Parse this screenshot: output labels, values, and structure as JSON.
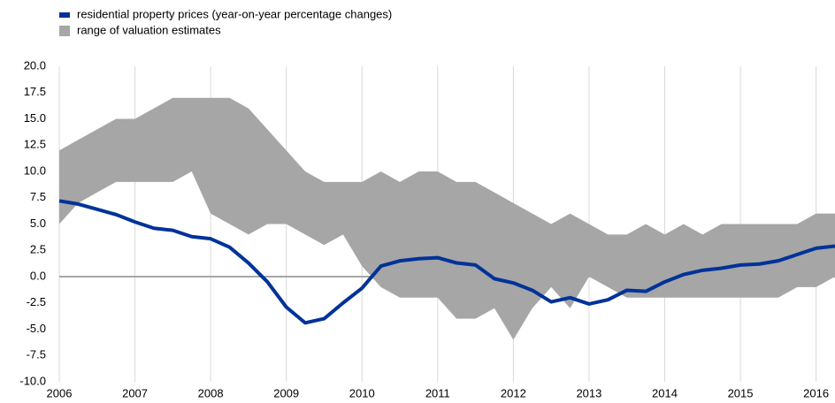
{
  "chart_data": {
    "type": "line",
    "x": [
      2006,
      2006.25,
      2006.5,
      2006.75,
      2007,
      2007.25,
      2007.5,
      2007.75,
      2008,
      2008.25,
      2008.5,
      2008.75,
      2009,
      2009.25,
      2009.5,
      2009.75,
      2010,
      2010.25,
      2010.5,
      2010.75,
      2011,
      2011.25,
      2011.5,
      2011.75,
      2012,
      2012.25,
      2012.5,
      2012.75,
      2013,
      2013.25,
      2013.5,
      2013.75,
      2014,
      2014.25,
      2014.5,
      2014.75,
      2015,
      2015.25,
      2015.5,
      2015.75,
      2016,
      2016.25
    ],
    "series": [
      {
        "name": "residential property prices (year-on-year percentage changes)",
        "color": "#003299",
        "values": [
          7.2,
          6.9,
          6.4,
          5.9,
          5.2,
          4.6,
          4.4,
          3.8,
          3.6,
          2.8,
          1.3,
          -0.5,
          -2.9,
          -4.4,
          -4.0,
          -2.5,
          -1.1,
          1.0,
          1.5,
          1.7,
          1.8,
          1.3,
          1.1,
          -0.2,
          -0.6,
          -1.3,
          -2.4,
          -2.0,
          -2.6,
          -2.2,
          -1.3,
          -1.4,
          -0.5,
          0.2,
          0.6,
          0.8,
          1.1,
          1.2,
          1.5,
          2.1,
          2.7,
          2.9
        ]
      },
      {
        "name": "range of valuation estimates",
        "color": "#a6a6a6",
        "upper": [
          12,
          13,
          14,
          15,
          15,
          16,
          17,
          17,
          17,
          17,
          16,
          14,
          12,
          10,
          9,
          9,
          9,
          10,
          9,
          10,
          10,
          9,
          9,
          8,
          7,
          6,
          5,
          6,
          5,
          4,
          4,
          5,
          4,
          5,
          4,
          5,
          5,
          5,
          5,
          5,
          6,
          6
        ],
        "lower": [
          5,
          7,
          8,
          9,
          9,
          9,
          9,
          10,
          6,
          5,
          4,
          5,
          5,
          4,
          3,
          4,
          1,
          -1,
          -2,
          -2,
          -2,
          -4,
          -4,
          -3,
          -6,
          -3,
          -1,
          -3,
          0,
          -1,
          -2,
          -2,
          -2,
          -2,
          -2,
          -2,
          -2,
          -2,
          -2,
          -1,
          -1,
          0
        ]
      }
    ],
    "xlim": [
      2006,
      2016.25
    ],
    "xticks": [
      2006,
      2007,
      2008,
      2009,
      2010,
      2011,
      2012,
      2013,
      2014,
      2015,
      2016
    ],
    "ylim": [
      -10,
      20
    ],
    "yticks": [
      {
        "value": -10,
        "label": "-10.0"
      },
      {
        "value": -7.5,
        "label": "-7.5"
      },
      {
        "value": -5,
        "label": "-5.0"
      },
      {
        "value": -2.5,
        "label": "-2.5"
      },
      {
        "value": 0,
        "label": "0.0"
      },
      {
        "value": 2.5,
        "label": "2.5"
      },
      {
        "value": 5,
        "label": "5.0"
      },
      {
        "value": 7.5,
        "label": "7.5"
      },
      {
        "value": 10,
        "label": "10.0"
      },
      {
        "value": 12.5,
        "label": "12.5"
      },
      {
        "value": 15,
        "label": "15.0"
      },
      {
        "value": 17.5,
        "label": "17.5"
      },
      {
        "value": 20,
        "label": "20.0"
      }
    ],
    "grid": true
  }
}
